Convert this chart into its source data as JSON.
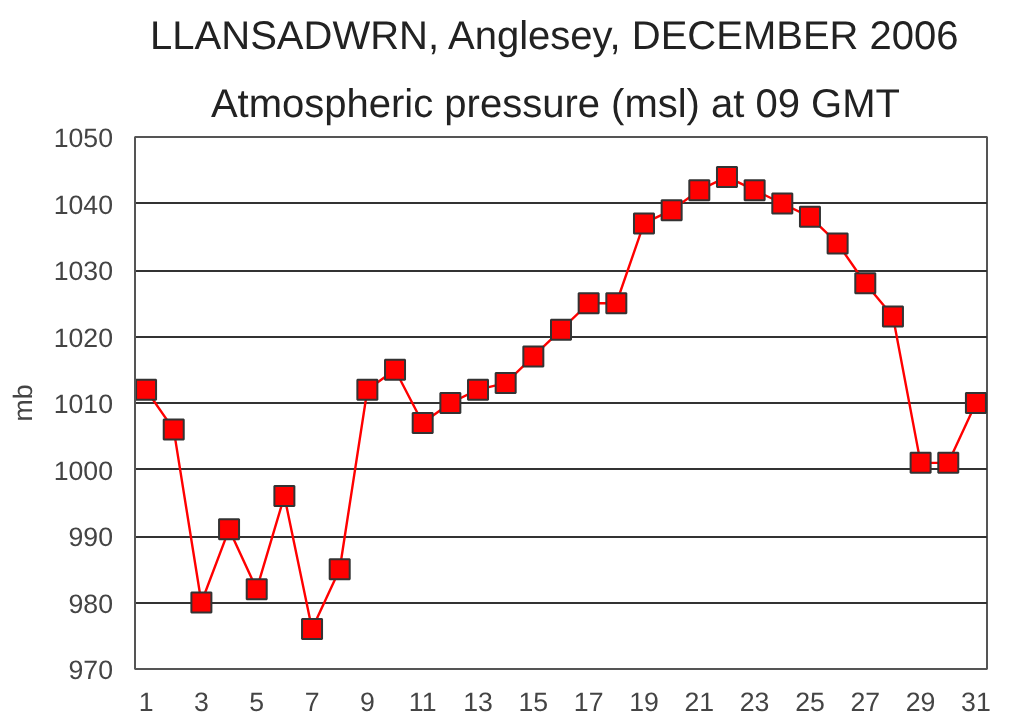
{
  "chart_data": {
    "type": "line",
    "title": "LLANSADWRN, Anglesey,  DECEMBER 2006",
    "subtitle": "Atmospheric pressure  (msl) at 09 GMT",
    "ylabel": "mb",
    "x": [
      1,
      2,
      3,
      4,
      5,
      6,
      7,
      8,
      9,
      10,
      11,
      12,
      13,
      14,
      15,
      16,
      17,
      18,
      19,
      20,
      21,
      22,
      23,
      24,
      25,
      26,
      27,
      28,
      29,
      30,
      31
    ],
    "series": [
      {
        "color": "#ff0000",
        "values": [
          1012,
          1006,
          980,
          991,
          982,
          996,
          976,
          985,
          1012,
          1015,
          1007,
          1010,
          1012,
          1013,
          1017,
          1021,
          1025,
          1025,
          1037,
          1039,
          1042,
          1044,
          1042,
          1040,
          1038,
          1034,
          1028,
          1023,
          1001,
          1001,
          1010
        ]
      }
    ],
    "xlim": [
      0.6,
      31.4
    ],
    "xticks": [
      1,
      3,
      5,
      7,
      9,
      11,
      13,
      15,
      17,
      19,
      21,
      23,
      25,
      27,
      29,
      31
    ],
    "ylim": [
      970,
      1050
    ],
    "yticks": [
      970,
      980,
      990,
      1000,
      1010,
      1020,
      1030,
      1040,
      1050
    ],
    "grid": "y",
    "marker": "square",
    "line_style": "solid"
  }
}
